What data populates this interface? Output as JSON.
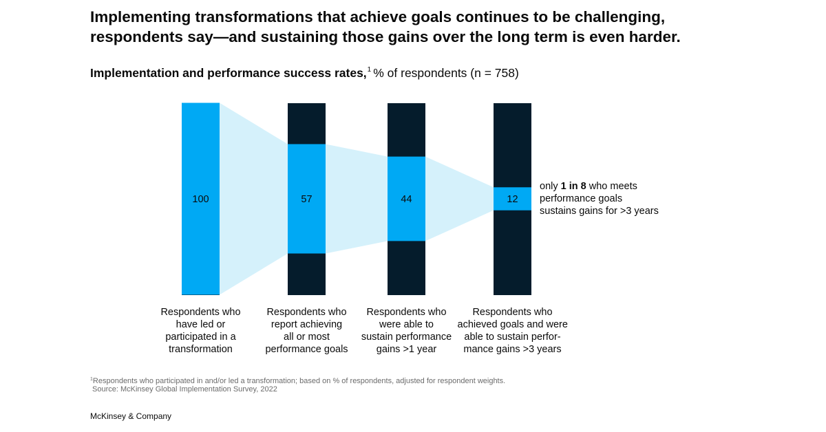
{
  "title_lines": [
    "Implementing transformations that achieve goals continues to be challenging,",
    "respondents say—and sustaining those gains over the long term is even harder."
  ],
  "subtitle": {
    "bold": "Implementation and performance success rates,",
    "footnote_ref": "1",
    "unit": "% of respondents (n = 758)"
  },
  "chart_data": {
    "type": "bar",
    "subtype": "funnel",
    "title": "Implementation and performance success rates",
    "ylabel": "% of respondents (n = 758)",
    "ylim": [
      0,
      100
    ],
    "categories": [
      "Respondents who have led or participated in a transformation",
      "Respondents who report achieving all or most performance goals",
      "Respondents who were able to sustain performance gains >1 year",
      "Respondents who achieved goals and were able to sustain performance gains >3 years"
    ],
    "values": [
      100,
      57,
      44,
      12
    ],
    "value_labels": [
      "100",
      "57",
      "44",
      "12"
    ],
    "label_lines": [
      [
        "Respondents who",
        "have led or",
        "participated in a",
        "transformation"
      ],
      [
        "Respondents who",
        "report achieving",
        "all or most",
        "performance goals"
      ],
      [
        "Respondents who",
        "were able to",
        "sustain performance",
        "gains >1 year"
      ],
      [
        "Respondents who",
        "achieved goals and were",
        "able to sustain perfor-",
        "mance gains >3 years"
      ]
    ],
    "colors": {
      "value_fill": "#00a9f4",
      "remainder_fill": "#051c2c",
      "funnel_fill": "#d5f1fb",
      "value_text": "#0a0a0a"
    }
  },
  "annotation": {
    "prefix": "only ",
    "emphasis": "1 in 8",
    "line1_suffix": " who meets",
    "line2": "performance goals",
    "line3": "sustains gains for >3 years"
  },
  "footnote": {
    "marker": "1",
    "text": "Respondents who participated in and/or led a transformation; based on % of respondents, adjusted for respondent weights.",
    "source": "Source: McKinsey Global Implementation Survey, 2022"
  },
  "brand": "McKinsey & Company"
}
